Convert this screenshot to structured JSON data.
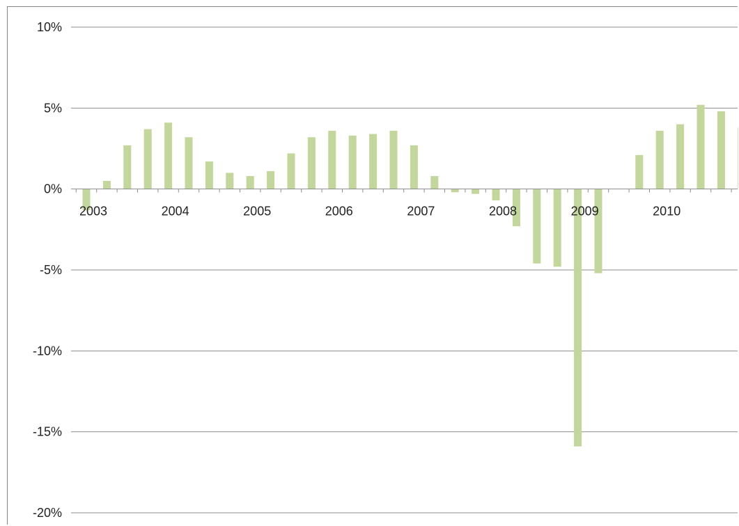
{
  "chart_data": {
    "type": "bar",
    "title": "",
    "xlabel": "",
    "ylabel": "",
    "ylim": [
      -20,
      10
    ],
    "y_ticks": [
      10,
      5,
      0,
      -5,
      -10,
      -15,
      -20
    ],
    "y_tick_labels": [
      "10%",
      "5%",
      "0%",
      "-5%",
      "-10%",
      "-15%",
      "-20%"
    ],
    "year_labels": [
      "2003",
      "2004",
      "2005",
      "2006",
      "2007",
      "2008",
      "2009",
      "2010"
    ],
    "grid": true,
    "legend": "none",
    "bar_color": "#c3d69b",
    "categories": [
      "2003 Q1",
      "2003 Q2",
      "2003 Q3",
      "2003 Q4",
      "2004 Q1",
      "2004 Q2",
      "2004 Q3",
      "2004 Q4",
      "2005 Q1",
      "2005 Q2",
      "2005 Q3",
      "2005 Q4",
      "2006 Q1",
      "2006 Q2",
      "2006 Q3",
      "2006 Q4",
      "2007 Q1",
      "2007 Q2",
      "2007 Q3",
      "2007 Q4",
      "2008 Q1",
      "2008 Q2",
      "2008 Q3",
      "2008 Q4",
      "2009 Q1",
      "2009 Q2",
      "2009 Q3",
      "2009 Q4",
      "2010 Q1",
      "2010 Q2",
      "2010 Q3",
      "2010 Q4"
    ],
    "values": [
      -1.3,
      0.5,
      2.7,
      3.7,
      4.1,
      3.2,
      1.7,
      1.0,
      0.8,
      1.1,
      2.2,
      3.2,
      3.6,
      3.3,
      3.4,
      3.6,
      2.7,
      0.8,
      -0.2,
      -0.3,
      -0.7,
      -2.3,
      -4.6,
      -4.8,
      -15.9,
      -5.2,
      0.0,
      2.1,
      3.6,
      4.0,
      5.2,
      4.8
    ],
    "extra_bar_value": 3.8
  }
}
